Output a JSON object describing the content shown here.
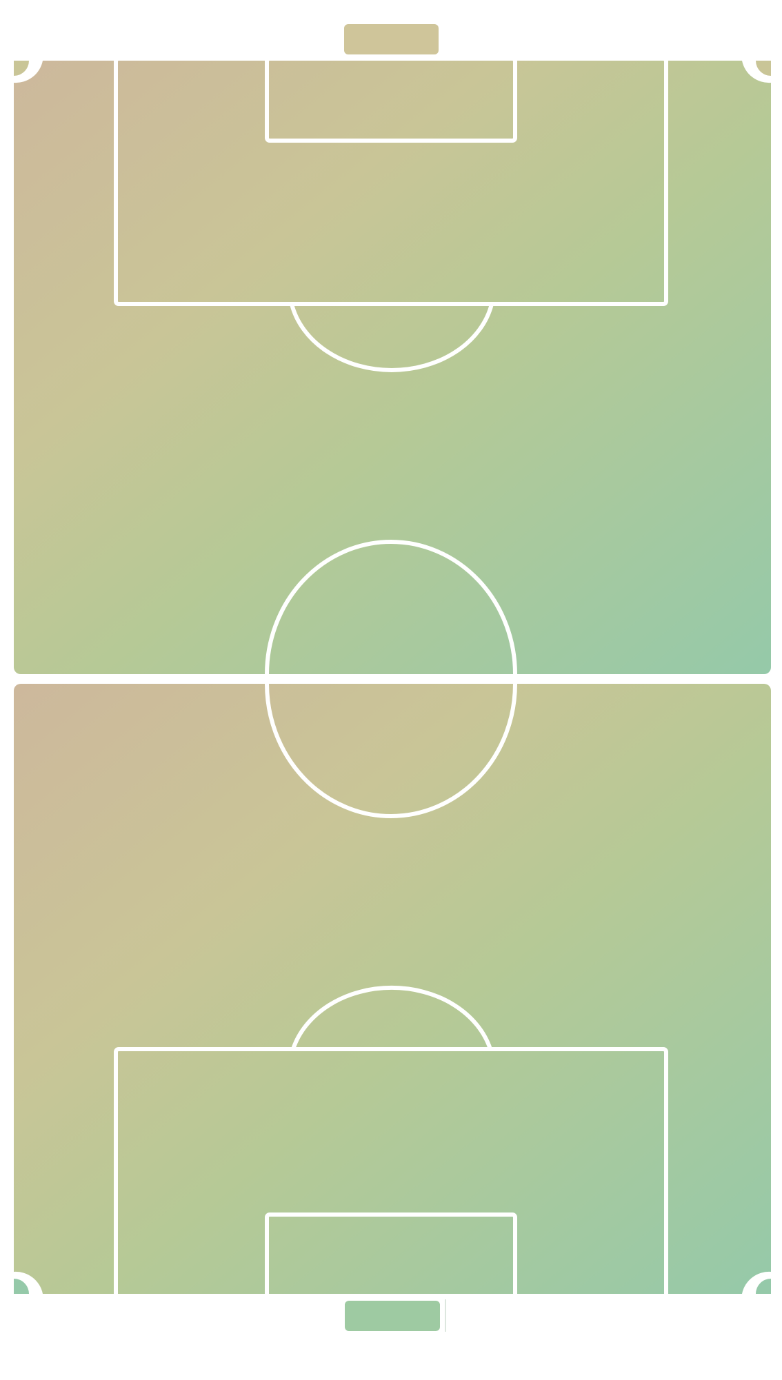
{
  "pitch": {
    "colors": {
      "background": "#ffffff",
      "line": "#ffffff",
      "gradient_top_left": "#cdb89c",
      "gradient_mid": "#c9c597",
      "gradient_center": "#b6c996",
      "gradient_bottom_right": "#95c9a9",
      "goal_top": "#cfc59a",
      "goal_bottom": "#9ecaa2"
    },
    "elements": {
      "halves": 2,
      "corner_arcs": 4,
      "goals": 2,
      "penalty_boxes": 2,
      "goal_boxes": 2,
      "penalty_arcs": 2,
      "center_circle": true
    }
  }
}
